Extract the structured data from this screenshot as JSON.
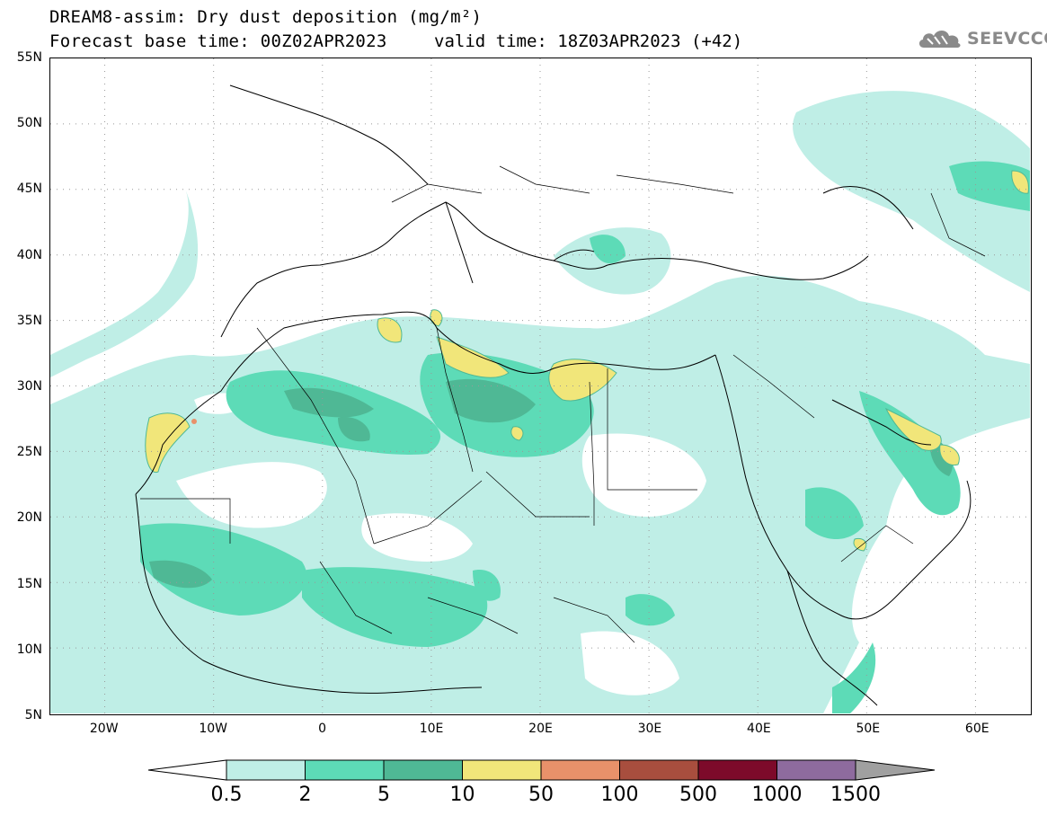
{
  "title": {
    "line1": "DREAM8-assim: Dry dust deposition (mg/m²)",
    "line2a": "Forecast base time: 00Z02APR2023",
    "line2b": "valid time: 18Z03APR2023 (+42)"
  },
  "logo": {
    "text": "SEEVCCC",
    "icon": "cloud-logo-icon"
  },
  "map": {
    "lat_labels": [
      "55N",
      "50N",
      "45N",
      "40N",
      "35N",
      "30N",
      "25N",
      "20N",
      "15N",
      "10N",
      "5N"
    ],
    "lon_labels": [
      "20W",
      "10W",
      "0",
      "10E",
      "20E",
      "30E",
      "40E",
      "50E",
      "60E"
    ],
    "lon_range": [
      -25,
      65
    ],
    "lat_range": [
      5,
      55
    ]
  },
  "colorbar": {
    "labels": [
      "0.5",
      "2",
      "5",
      "10",
      "50",
      "100",
      "500",
      "1000",
      "1500"
    ],
    "colors": [
      "#bfeee6",
      "#5ddbb7",
      "#4fb895",
      "#f1e67a",
      "#e8916a",
      "#a84e3e",
      "#7d0a2a",
      "#8e6b9e"
    ],
    "under_color": "#ffffff",
    "over_color": "#a0a0a0"
  },
  "colors": {
    "level_1": "#bfeee6",
    "level_2": "#5ddbb7",
    "level_3": "#4fb895",
    "level_4": "#f1e67a",
    "level_5": "#e8916a"
  }
}
